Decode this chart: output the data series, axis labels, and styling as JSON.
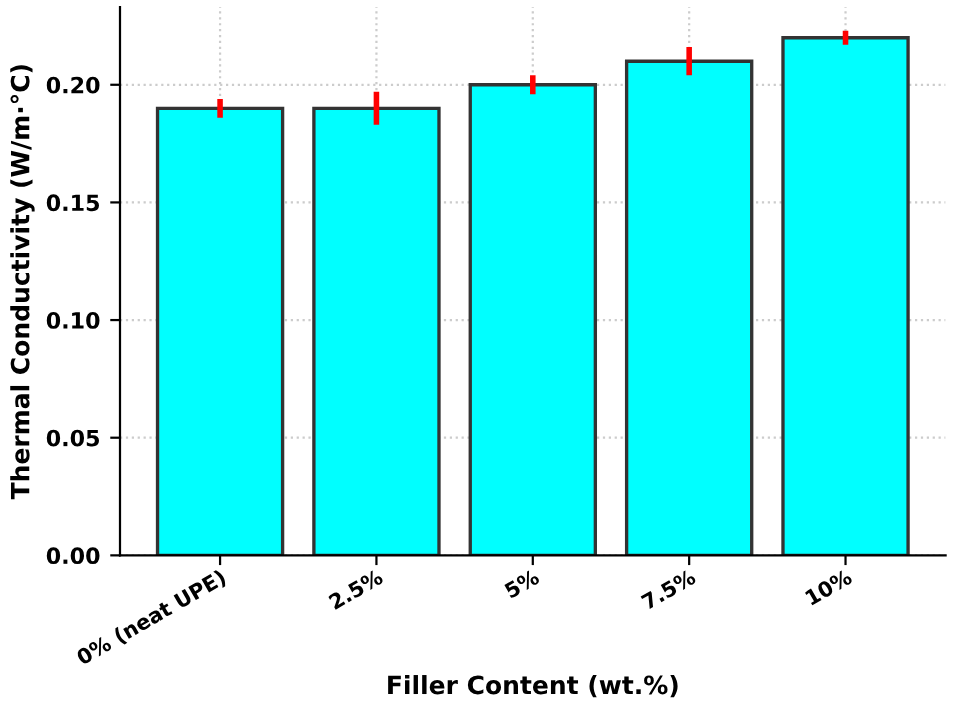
{
  "chart_data": {
    "type": "bar",
    "xlabel": "Filler Content (wt.%)",
    "ylabel": "Thermal Conductivity (W/m·°C)",
    "categories": [
      "0% (neat UPE)",
      "2.5%",
      "5%",
      "7.5%",
      "10%"
    ],
    "values": [
      0.19,
      0.19,
      0.2,
      0.21,
      0.22
    ],
    "errors": [
      0.004,
      0.007,
      0.004,
      0.006,
      0.003
    ],
    "color": "#00ffff",
    "ylim": [
      0,
      0.233
    ],
    "yticks": [
      {
        "value": 0,
        "label": "0.00"
      },
      {
        "value": 0.05,
        "label": "0.05"
      },
      {
        "value": 0.1,
        "label": "0.10"
      },
      {
        "value": 0.15,
        "label": "0.15"
      },
      {
        "value": 0.2,
        "label": "0.20"
      }
    ],
    "grid": true
  }
}
